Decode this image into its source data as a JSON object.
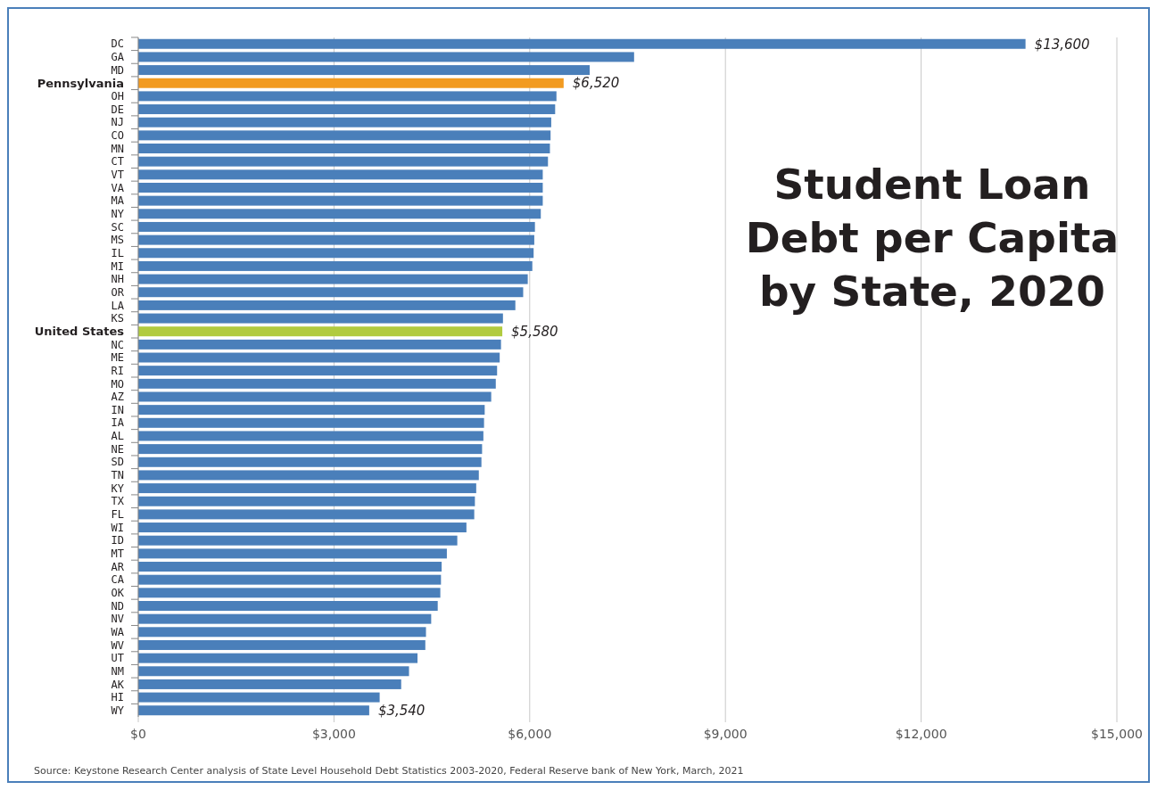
{
  "chart_data": {
    "type": "bar",
    "orientation": "horizontal",
    "title": "Student Loan Debt per Capita by State, 2020",
    "categories": [
      "DC",
      "GA",
      "MD",
      "Pennsylvania",
      "OH",
      "DE",
      "NJ",
      "CO",
      "MN",
      "CT",
      "VT",
      "VA",
      "MA",
      "NY",
      "SC",
      "MS",
      "IL",
      "MI",
      "NH",
      "OR",
      "LA",
      "KS",
      "United States",
      "NC",
      "ME",
      "RI",
      "MO",
      "AZ",
      "IN",
      "IA",
      "AL",
      "NE",
      "SD",
      "TN",
      "KY",
      "TX",
      "FL",
      "WI",
      "ID",
      "MT",
      "AR",
      "CA",
      "OK",
      "ND",
      "NV",
      "WA",
      "WV",
      "UT",
      "NM",
      "AK",
      "HI",
      "WY"
    ],
    "values": [
      13600,
      7600,
      6920,
      6520,
      6410,
      6390,
      6330,
      6320,
      6310,
      6280,
      6200,
      6200,
      6200,
      6170,
      6080,
      6070,
      6060,
      6040,
      5970,
      5900,
      5780,
      5590,
      5580,
      5560,
      5540,
      5500,
      5480,
      5410,
      5310,
      5300,
      5290,
      5270,
      5260,
      5220,
      5180,
      5160,
      5150,
      5030,
      4890,
      4730,
      4650,
      4640,
      4630,
      4590,
      4490,
      4410,
      4400,
      4280,
      4150,
      4030,
      3700,
      3540
    ],
    "colors": [
      "#4a7fba",
      "#4a7fba",
      "#4a7fba",
      "#f29b21",
      "#4a7fba",
      "#4a7fba",
      "#4a7fba",
      "#4a7fba",
      "#4a7fba",
      "#4a7fba",
      "#4a7fba",
      "#4a7fba",
      "#4a7fba",
      "#4a7fba",
      "#4a7fba",
      "#4a7fba",
      "#4a7fba",
      "#4a7fba",
      "#4a7fba",
      "#4a7fba",
      "#4a7fba",
      "#4a7fba",
      "#b1cb3f",
      "#4a7fba",
      "#4a7fba",
      "#4a7fba",
      "#4a7fba",
      "#4a7fba",
      "#4a7fba",
      "#4a7fba",
      "#4a7fba",
      "#4a7fba",
      "#4a7fba",
      "#4a7fba",
      "#4a7fba",
      "#4a7fba",
      "#4a7fba",
      "#4a7fba",
      "#4a7fba",
      "#4a7fba",
      "#4a7fba",
      "#4a7fba",
      "#4a7fba",
      "#4a7fba",
      "#4a7fba",
      "#4a7fba",
      "#4a7fba",
      "#4a7fba",
      "#4a7fba",
      "#4a7fba",
      "#4a7fba",
      "#4a7fba"
    ],
    "value_labels": [
      "$13,600",
      null,
      null,
      "$6,520",
      null,
      null,
      null,
      null,
      null,
      null,
      null,
      null,
      null,
      null,
      null,
      null,
      null,
      null,
      null,
      null,
      null,
      null,
      "$5,580",
      null,
      null,
      null,
      null,
      null,
      null,
      null,
      null,
      null,
      null,
      null,
      null,
      null,
      null,
      null,
      null,
      null,
      null,
      null,
      null,
      null,
      null,
      null,
      null,
      null,
      null,
      null,
      null,
      "$3,540"
    ],
    "xlim": [
      0,
      15000
    ],
    "xticks": [
      {
        "value": 0,
        "label": "$0"
      },
      {
        "value": 3000,
        "label": "$3,000"
      },
      {
        "value": 6000,
        "label": "$6,000"
      },
      {
        "value": 9000,
        "label": "$9,000"
      },
      {
        "value": 12000,
        "label": "$12,000"
      },
      {
        "value": 15000,
        "label": "$15,000"
      }
    ],
    "grid": "x",
    "annotations": [
      "Source: Keystone Research Center analysis of State Level Household Debt Statistics 2003-2020, Federal Reserve bank of New York, March, 2021"
    ]
  }
}
